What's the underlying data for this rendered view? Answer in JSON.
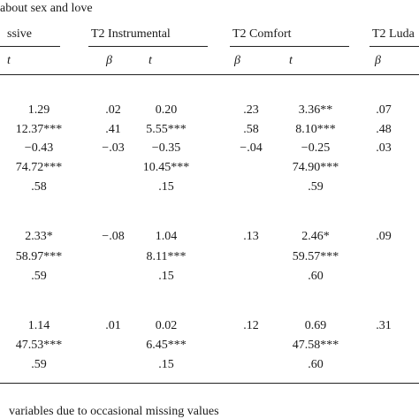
{
  "caption": "about sex and love",
  "header": {
    "groups": [
      "ssive",
      "T2 Instrumental",
      "T2 Comfort",
      "T2 Luda"
    ],
    "subheaders": [
      "t",
      "β",
      "t",
      "β",
      "t",
      "β"
    ]
  },
  "table": {
    "rows": [
      [
        "1.29",
        ".02",
        "0.20",
        ".23",
        "3.36**",
        ".07"
      ],
      [
        "12.37***",
        ".41",
        "5.55***",
        ".58",
        "8.10***",
        ".48"
      ],
      [
        "−0.43",
        "−.03",
        "−0.35",
        "−.04",
        "−0.25",
        ".03"
      ],
      [
        "74.72***",
        null,
        "10.45***",
        null,
        "74.90***",
        null
      ],
      [
        ".58",
        null,
        ".15",
        null,
        ".59",
        null
      ],
      [
        "2.33*",
        "−.08",
        "1.04",
        ".13",
        "2.46*",
        ".09"
      ],
      [
        "58.97***",
        null,
        "8.11***",
        null,
        "59.57***",
        null
      ],
      [
        ".59",
        null,
        ".15",
        null,
        ".60",
        null
      ],
      [
        "1.14",
        ".01",
        "0.02",
        ".12",
        "0.69",
        ".31"
      ],
      [
        "47.53***",
        null,
        "6.45***",
        null,
        "47.58***",
        null
      ],
      [
        ".59",
        null,
        ".15",
        null,
        ".60",
        null
      ]
    ]
  },
  "footnote": "variables due to occasional missing values"
}
